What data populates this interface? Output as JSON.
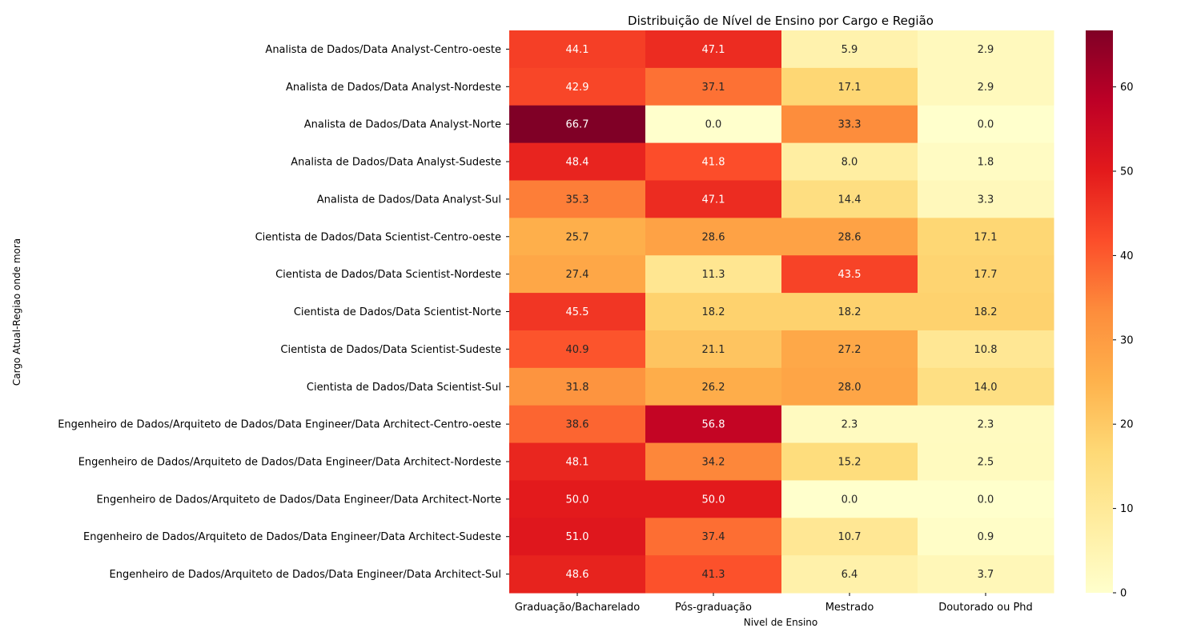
{
  "chart_data": {
    "type": "heatmap",
    "title": "Distribuição de Nível de Ensino por Cargo e Região",
    "xlabel": "Nivel de Ensino",
    "ylabel": "Cargo Atual-Regiao onde mora",
    "columns": [
      "Graduação/Bacharelado",
      "Pós-graduação",
      "Mestrado",
      "Doutorado ou Phd"
    ],
    "rows": [
      "Analista de Dados/Data Analyst-Centro-oeste",
      "Analista de Dados/Data Analyst-Nordeste",
      "Analista de Dados/Data Analyst-Norte",
      "Analista de Dados/Data Analyst-Sudeste",
      "Analista de Dados/Data Analyst-Sul",
      "Cientista de Dados/Data Scientist-Centro-oeste",
      "Cientista de Dados/Data Scientist-Nordeste",
      "Cientista de Dados/Data Scientist-Norte",
      "Cientista de Dados/Data Scientist-Sudeste",
      "Cientista de Dados/Data Scientist-Sul",
      "Engenheiro de Dados/Arquiteto de Dados/Data Engineer/Data Architect-Centro-oeste",
      "Engenheiro de Dados/Arquiteto de Dados/Data Engineer/Data Architect-Nordeste",
      "Engenheiro de Dados/Arquiteto de Dados/Data Engineer/Data Architect-Norte",
      "Engenheiro de Dados/Arquiteto de Dados/Data Engineer/Data Architect-Sudeste",
      "Engenheiro de Dados/Arquiteto de Dados/Data Engineer/Data Architect-Sul"
    ],
    "values": [
      [
        44.1,
        47.1,
        5.9,
        2.9
      ],
      [
        42.9,
        37.1,
        17.1,
        2.9
      ],
      [
        66.7,
        0.0,
        33.3,
        0.0
      ],
      [
        48.4,
        41.8,
        8.0,
        1.8
      ],
      [
        35.3,
        47.1,
        14.4,
        3.3
      ],
      [
        25.7,
        28.6,
        28.6,
        17.1
      ],
      [
        27.4,
        11.3,
        43.5,
        17.7
      ],
      [
        45.5,
        18.2,
        18.2,
        18.2
      ],
      [
        40.9,
        21.1,
        27.2,
        10.8
      ],
      [
        31.8,
        26.2,
        28.0,
        14.0
      ],
      [
        38.6,
        56.8,
        2.3,
        2.3
      ],
      [
        48.1,
        34.2,
        15.2,
        2.5
      ],
      [
        50.0,
        50.0,
        0.0,
        0.0
      ],
      [
        51.0,
        37.4,
        10.7,
        0.9
      ],
      [
        48.6,
        41.3,
        6.4,
        3.7
      ]
    ],
    "colormap": "YlOrRd",
    "vmin": 0,
    "vmax": 66.7,
    "colorbar_ticks": [
      0,
      10,
      20,
      30,
      40,
      50,
      60
    ]
  }
}
